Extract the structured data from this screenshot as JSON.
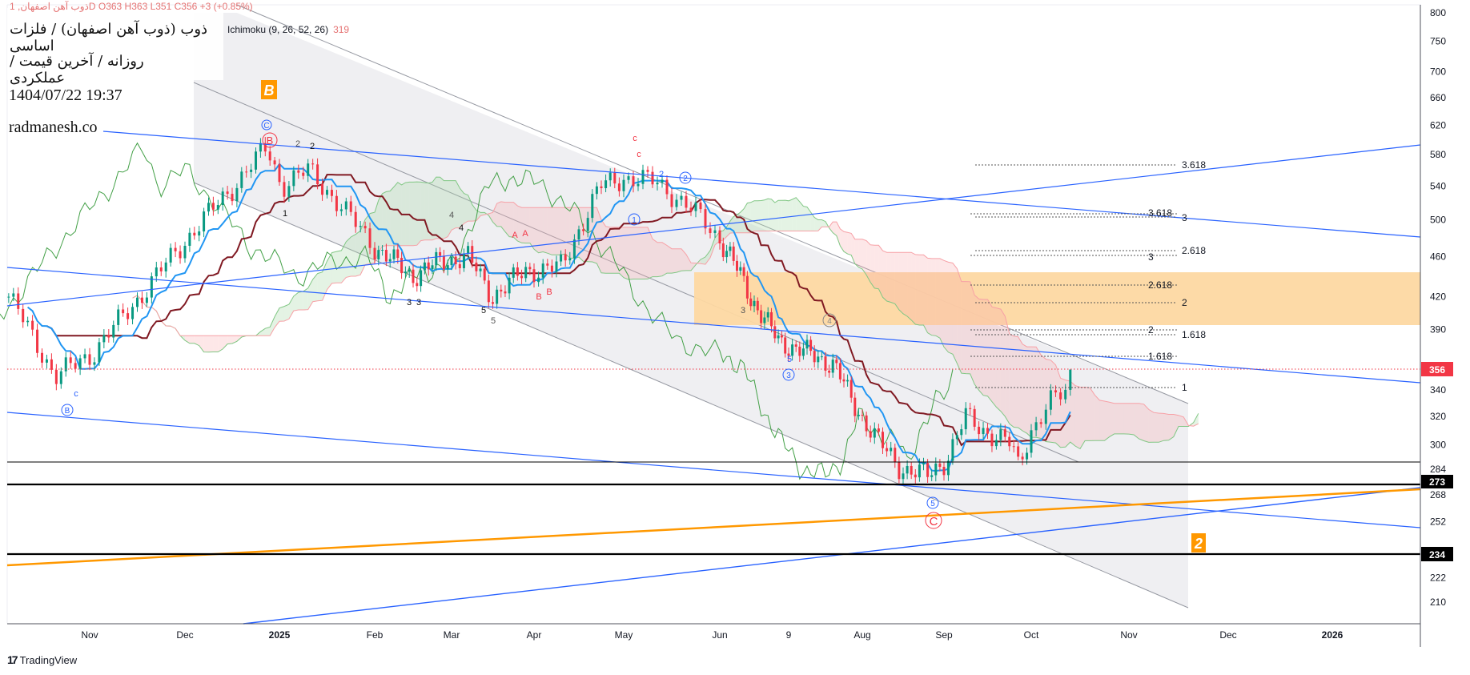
{
  "header": {
    "ohlc_line": "ذوب آهن اصفهان, 1D  O363  H363  L351  C356  +3 (+0.85%)",
    "indicator_value": "319",
    "title": "ذوب (ذوب آهن اصفهان) / فلزات اساسی",
    "subtitle": "روزانه / آخرین قیمت / عملکردی",
    "datetime": "1404/07/22 19:37",
    "website": "radmanesh.co"
  },
  "branding": {
    "name": "TradingView"
  },
  "colors": {
    "up": "#089981",
    "down": "#f23645",
    "tenkan": "#2196f3",
    "kijun": "#801922",
    "lagging": "#43a047",
    "trendline": "#2962ff",
    "orange": "#ff9800",
    "zone": "#fdd8a2"
  },
  "chart_data": {
    "type": "candlestick",
    "title": "ذوب (ذوب آهن اصفهان) / فلزات اساسی",
    "scale": "log",
    "ylim": [
      205,
      800
    ],
    "y_ticks": [
      800,
      750,
      700,
      660,
      620,
      580,
      540,
      500,
      460,
      420,
      390,
      340,
      320,
      300,
      284,
      268,
      252,
      222,
      210
    ],
    "x_ticks": [
      "Nov",
      "Dec",
      "2025",
      "Feb",
      "Mar",
      "Apr",
      "May",
      "Jun",
      "9",
      "Aug",
      "Sep",
      "Oct",
      "Nov",
      "Dec",
      "2026"
    ],
    "x_tick_month_index": [
      1,
      2,
      3,
      4,
      5,
      6,
      7,
      8,
      9,
      10,
      11,
      12,
      13,
      14,
      15
    ],
    "price_path_month_price": [
      [
        0.15,
        420
      ],
      [
        0.64,
        350
      ],
      [
        1.04,
        370
      ],
      [
        1.53,
        420
      ],
      [
        2.03,
        480
      ],
      [
        2.52,
        540
      ],
      [
        2.87,
        590
      ],
      [
        3.02,
        540
      ],
      [
        3.31,
        560
      ],
      [
        3.61,
        520
      ],
      [
        4.0,
        470
      ],
      [
        4.49,
        440
      ],
      [
        4.85,
        455
      ],
      [
        5.2,
        460
      ],
      [
        5.49,
        420
      ],
      [
        5.89,
        445
      ],
      [
        6.32,
        450
      ],
      [
        6.74,
        540
      ],
      [
        7.0,
        550
      ],
      [
        7.34,
        545
      ],
      [
        7.73,
        510
      ],
      [
        8.16,
        460
      ],
      [
        8.44,
        420
      ],
      [
        8.85,
        380
      ],
      [
        9.24,
        370
      ],
      [
        9.62,
        360
      ],
      [
        9.87,
        330
      ],
      [
        10.23,
        300
      ],
      [
        10.46,
        285
      ],
      [
        10.8,
        280
      ],
      [
        11.03,
        290
      ],
      [
        11.25,
        320
      ],
      [
        11.46,
        310
      ],
      [
        11.78,
        300
      ],
      [
        11.84,
        285
      ],
      [
        12.0,
        310
      ],
      [
        12.19,
        330
      ],
      [
        12.38,
        340
      ],
      [
        12.43,
        356
      ]
    ],
    "last_price": 356,
    "price_badges": [
      "356",
      "273",
      "234"
    ],
    "indicator": "Ichimoku (9, 26, 52, 26)",
    "fib_labels": [
      {
        "text": "3.618"
      },
      {
        "text": "3.618"
      },
      {
        "text": "3"
      },
      {
        "text": "2.618"
      },
      {
        "text": "3"
      },
      {
        "text": "2.618"
      },
      {
        "text": "2"
      },
      {
        "text": "2"
      },
      {
        "text": "1.618"
      },
      {
        "text": "1.618"
      },
      {
        "text": "1"
      }
    ],
    "wave_labels": {
      "big_b": "B",
      "big_2": "2",
      "circ_c_blue": "C",
      "circ_b_red": "B",
      "w2a": "2",
      "w2b": "2",
      "circ2": "2",
      "w2c": "2",
      "circ1": "1",
      "c1": "c",
      "c2": "c",
      "a1": "A",
      "a2": "A",
      "b1": "B",
      "b2": "B",
      "w3a": "3",
      "w3b": "3",
      "w5a": "5",
      "w5b": "5",
      "w4a": "4",
      "w4b": "4",
      "w1": "1",
      "c_blue": "c",
      "circ_b_blue": "B",
      "w3c": "3",
      "circ4": "4",
      "circ3": "3",
      "w5c": "5",
      "circ5": "5",
      "circ_c_red": "C"
    }
  }
}
